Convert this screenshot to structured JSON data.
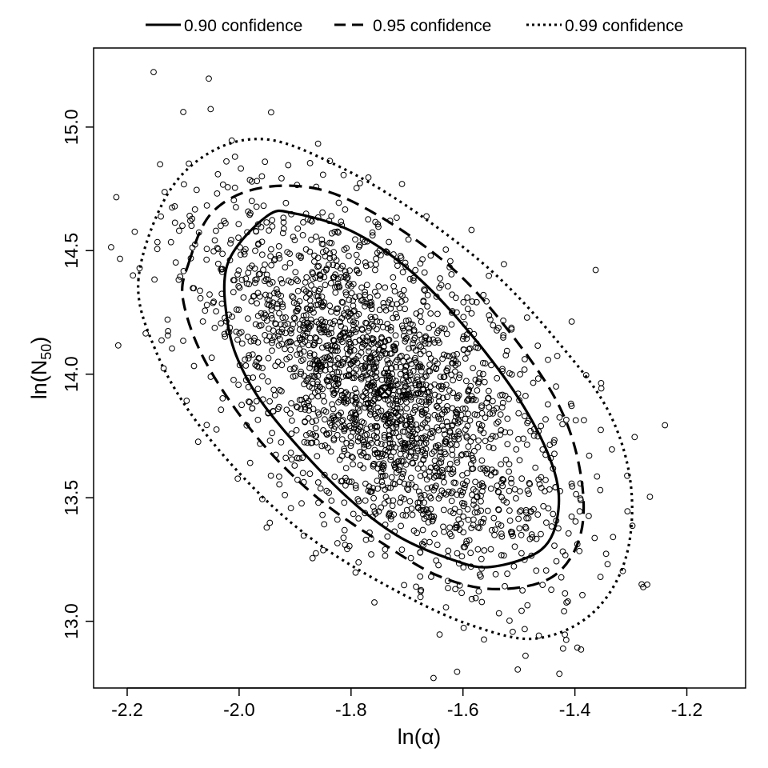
{
  "chart_data": {
    "type": "scatter",
    "title": "",
    "xlabel": "ln(α)",
    "ylabel_main": "ln(N",
    "ylabel_sub": "50",
    "ylabel_close": ")",
    "xlim": [
      -2.26,
      -1.095
    ],
    "ylim": [
      12.73,
      15.32
    ],
    "x_ticks": [
      -2.2,
      -2.0,
      -1.8,
      -1.6,
      -1.4,
      -1.2
    ],
    "x_tick_labels": [
      "-2.2",
      "-2.0",
      "-1.8",
      "-1.6",
      "-1.4",
      "-1.2"
    ],
    "y_ticks": [
      13.0,
      13.5,
      14.0,
      14.5,
      15.0
    ],
    "y_tick_labels": [
      "13.0",
      "13.5",
      "14.0",
      "14.5",
      "15.0"
    ],
    "grid": false,
    "legend_position": "top",
    "center_estimate": {
      "x": -1.74,
      "y": 13.93
    },
    "series": [
      {
        "name": "0.90 confidence",
        "style": "solid",
        "type": "ellipse",
        "path": [
          [
            -2.02,
            14.45
          ],
          [
            -1.95,
            14.64
          ],
          [
            -1.9,
            14.65
          ],
          [
            -1.8,
            14.58
          ],
          [
            -1.7,
            14.43
          ],
          [
            -1.6,
            14.2
          ],
          [
            -1.5,
            13.9
          ],
          [
            -1.44,
            13.63
          ],
          [
            -1.43,
            13.44
          ],
          [
            -1.46,
            13.29
          ],
          [
            -1.55,
            13.22
          ],
          [
            -1.62,
            13.25
          ],
          [
            -1.72,
            13.35
          ],
          [
            -1.82,
            13.53
          ],
          [
            -1.93,
            13.8
          ],
          [
            -1.99,
            14.0
          ],
          [
            -2.02,
            14.2
          ],
          [
            -2.02,
            14.45
          ]
        ]
      },
      {
        "name": "0.95 confidence",
        "style": "dashed",
        "type": "ellipse",
        "path": [
          [
            -2.09,
            14.45
          ],
          [
            -2.05,
            14.65
          ],
          [
            -1.97,
            14.75
          ],
          [
            -1.86,
            14.75
          ],
          [
            -1.75,
            14.64
          ],
          [
            -1.62,
            14.43
          ],
          [
            -1.52,
            14.18
          ],
          [
            -1.43,
            13.88
          ],
          [
            -1.39,
            13.6
          ],
          [
            -1.39,
            13.35
          ],
          [
            -1.44,
            13.18
          ],
          [
            -1.54,
            13.13
          ],
          [
            -1.64,
            13.18
          ],
          [
            -1.74,
            13.31
          ],
          [
            -1.86,
            13.5
          ],
          [
            -1.97,
            13.75
          ],
          [
            -2.06,
            14.05
          ],
          [
            -2.1,
            14.3
          ],
          [
            -2.09,
            14.45
          ]
        ]
      },
      {
        "name": "0.99 confidence",
        "style": "dotted",
        "type": "ellipse",
        "path": [
          [
            -2.18,
            14.38
          ],
          [
            -2.13,
            14.72
          ],
          [
            -2.05,
            14.9
          ],
          [
            -1.95,
            14.95
          ],
          [
            -1.83,
            14.85
          ],
          [
            -1.7,
            14.68
          ],
          [
            -1.55,
            14.42
          ],
          [
            -1.43,
            14.13
          ],
          [
            -1.34,
            13.85
          ],
          [
            -1.3,
            13.55
          ],
          [
            -1.31,
            13.25
          ],
          [
            -1.37,
            13.03
          ],
          [
            -1.47,
            12.93
          ],
          [
            -1.58,
            12.98
          ],
          [
            -1.7,
            13.1
          ],
          [
            -1.85,
            13.3
          ],
          [
            -1.97,
            13.53
          ],
          [
            -2.08,
            13.82
          ],
          [
            -2.15,
            14.1
          ],
          [
            -2.18,
            14.38
          ]
        ]
      }
    ],
    "scatter": {
      "n_points": 2300,
      "distribution": "bivariate normal sample",
      "mean": [
        -1.74,
        13.93
      ],
      "sd": [
        0.16,
        0.38
      ],
      "correlation": -0.6
    }
  }
}
